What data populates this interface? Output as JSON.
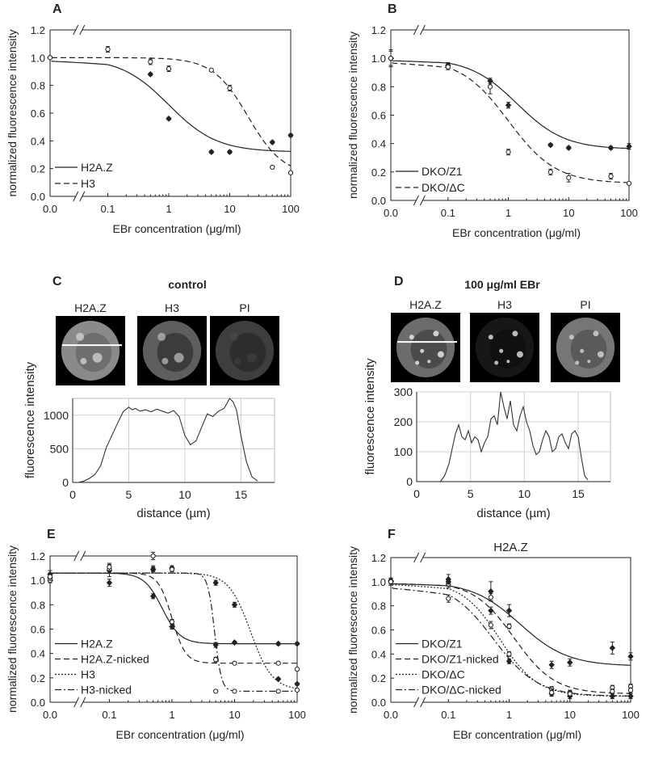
{
  "chart_data": [
    {
      "panel": "A",
      "type": "scatter",
      "xlabel": "EBr concentration (μg/ml)",
      "ylabel": "normalized fluorescence intensity",
      "xscale": "log with break (0.0 shown at origin)",
      "xticks": [
        "0.0",
        "0.1",
        "1",
        "10",
        "100"
      ],
      "yticks": [
        "0.0",
        "0.2",
        "0.4",
        "0.6",
        "0.8",
        "1.0",
        "1.2"
      ],
      "ylim": [
        0,
        1.2
      ],
      "legend_position": "bottom-left",
      "series": [
        {
          "name": "H2A.Z",
          "line": "solid",
          "marker": "filled",
          "x": [
            0,
            0.5,
            1,
            5,
            10,
            50,
            100
          ],
          "y": [
            1.0,
            0.88,
            0.56,
            0.32,
            0.32,
            0.39,
            0.44
          ],
          "err": [
            0.01,
            0.01,
            0.01,
            0.01,
            0.01,
            0.01,
            0.01
          ],
          "fit": {
            "bottom": 0.32,
            "top": 1.0,
            "ec50": 1.0,
            "hill": 1.1
          }
        },
        {
          "name": "H3",
          "line": "dashed",
          "marker": "open",
          "x": [
            0,
            0.1,
            0.5,
            1,
            5,
            10,
            50,
            100
          ],
          "y": [
            1.0,
            1.06,
            0.97,
            0.92,
            0.91,
            0.78,
            0.21,
            0.17
          ],
          "err": [
            0.01,
            0.02,
            0.02,
            0.02,
            0.01,
            0.02,
            0.01,
            0.01
          ],
          "fit": {
            "bottom": 0.15,
            "top": 1.0,
            "ec50": 20,
            "hill": 1.5
          }
        }
      ]
    },
    {
      "panel": "B",
      "type": "scatter",
      "xlabel": "EBr concentration (μg/ml)",
      "ylabel": "normalized fluorescence intensity",
      "xticks": [
        "0.0",
        "0.1",
        "1",
        "10",
        "100"
      ],
      "yticks": [
        "0.0",
        "0.2",
        "0.4",
        "0.6",
        "0.8",
        "1.0",
        "1.2"
      ],
      "ylim": [
        0,
        1.2
      ],
      "legend_position": "bottom-left",
      "series": [
        {
          "name": "DKO/Z1",
          "line": "solid",
          "marker": "filled",
          "x": [
            0,
            0.1,
            0.5,
            1,
            5,
            10,
            50,
            100
          ],
          "y": [
            1.0,
            0.95,
            0.84,
            0.67,
            0.39,
            0.37,
            0.37,
            0.38
          ],
          "err": [
            0.06,
            0.02,
            0.02,
            0.02,
            0.01,
            0.01,
            0.01,
            0.02
          ],
          "fit": {
            "bottom": 0.36,
            "top": 1.0,
            "ec50": 1.4,
            "hill": 1.1
          }
        },
        {
          "name": "DKO/ΔC",
          "line": "dashed",
          "marker": "open",
          "x": [
            0,
            0.1,
            0.5,
            1,
            5,
            10,
            50,
            100
          ],
          "y": [
            1.0,
            0.94,
            0.8,
            0.34,
            0.2,
            0.16,
            0.17,
            0.12
          ],
          "err": [
            0.05,
            0.02,
            0.05,
            0.02,
            0.02,
            0.03,
            0.02,
            0.01
          ],
          "fit": {
            "bottom": 0.12,
            "top": 1.0,
            "ec50": 1.0,
            "hill": 1.1
          }
        }
      ]
    },
    {
      "panel": "C",
      "type": "line",
      "title": "control",
      "image_labels": [
        "H2A.Z",
        "H3",
        "PI"
      ],
      "xlabel": "distance (µm)",
      "ylabel": "fluorescence intensity",
      "xticks": [
        "0",
        "5",
        "10",
        "15"
      ],
      "yticks": [
        "0",
        "500",
        "1000"
      ],
      "xlim": [
        0,
        18
      ],
      "ylim": [
        0,
        1250
      ],
      "x": [
        0.5,
        1.0,
        1.5,
        2.0,
        2.5,
        3.0,
        3.5,
        4.0,
        4.5,
        5.0,
        5.3,
        5.6,
        6.0,
        6.5,
        7.0,
        7.5,
        8.0,
        8.5,
        9.0,
        9.5,
        10.0,
        10.5,
        11.0,
        11.5,
        12.0,
        12.5,
        13.0,
        13.5,
        14.0,
        14.3,
        14.6,
        15.0,
        15.5,
        16.0,
        16.5
      ],
      "y": [
        0,
        20,
        60,
        120,
        250,
        520,
        700,
        880,
        1050,
        1120,
        1080,
        1100,
        1060,
        1080,
        1050,
        1090,
        1060,
        1030,
        1070,
        980,
        700,
        560,
        620,
        820,
        1020,
        980,
        1060,
        1100,
        1250,
        1200,
        1080,
        700,
        300,
        80,
        20
      ]
    },
    {
      "panel": "D",
      "type": "line",
      "title": "100 μg/ml EBr",
      "image_labels": [
        "H2A.Z",
        "H3",
        "PI"
      ],
      "xlabel": "distance (µm)",
      "ylabel": "fluorescence intensity",
      "xticks": [
        "0",
        "5",
        "10",
        "15"
      ],
      "yticks": [
        "0",
        "100",
        "200",
        "300"
      ],
      "xlim": [
        0,
        18
      ],
      "ylim": [
        0,
        300
      ],
      "x": [
        2.2,
        2.6,
        3.0,
        3.3,
        3.6,
        3.9,
        4.2,
        4.5,
        4.8,
        5.1,
        5.4,
        5.7,
        6.0,
        6.3,
        6.6,
        6.9,
        7.2,
        7.5,
        7.8,
        8.1,
        8.4,
        8.7,
        9.0,
        9.3,
        9.6,
        9.9,
        10.2,
        10.5,
        10.8,
        11.1,
        11.4,
        11.7,
        12.0,
        12.3,
        12.6,
        12.9,
        13.2,
        13.5,
        13.8,
        14.1,
        14.4,
        14.7,
        15.0,
        15.3,
        15.6,
        15.9
      ],
      "y": [
        0,
        20,
        60,
        110,
        160,
        190,
        150,
        140,
        170,
        130,
        150,
        140,
        100,
        130,
        150,
        210,
        220,
        190,
        300,
        250,
        210,
        270,
        190,
        170,
        220,
        250,
        200,
        170,
        120,
        90,
        100,
        140,
        170,
        150,
        100,
        110,
        150,
        160,
        130,
        110,
        160,
        170,
        150,
        80,
        20,
        5
      ]
    },
    {
      "panel": "E",
      "type": "scatter",
      "xlabel": "EBr concentration (μg/ml)",
      "ylabel": "normalized fluorescence intensity",
      "xticks": [
        "0.0",
        "0.1",
        "1",
        "10",
        "100"
      ],
      "yticks": [
        "0.0",
        "0.2",
        "0.4",
        "0.6",
        "0.8",
        "1.0",
        "1.2"
      ],
      "ylim": [
        0,
        1.2
      ],
      "legend_position": "bottom-left",
      "series": [
        {
          "name": "H2A.Z",
          "line": "solid",
          "marker": "filled",
          "x": [
            0,
            0.1,
            0.5,
            1,
            5,
            10,
            50,
            100
          ],
          "y": [
            1.02,
            1.08,
            0.87,
            0.62,
            0.47,
            0.49,
            0.48,
            0.48
          ],
          "err": [
            0.03,
            0.05,
            0.02,
            0.02,
            0.02,
            0.01,
            0.01,
            0.01
          ],
          "fit": {
            "bottom": 0.48,
            "top": 1.06,
            "ec50": 0.7,
            "hill": 3.0
          }
        },
        {
          "name": "H2A.Z-nicked",
          "line": "dashed",
          "marker": "open",
          "x": [
            0,
            0.1,
            0.5,
            1,
            5,
            10,
            50,
            100
          ],
          "y": [
            1.0,
            1.09,
            1.09,
            0.66,
            0.35,
            0.32,
            0.32,
            0.27
          ],
          "err": [
            0.02,
            0.03,
            0.03,
            0.02,
            0.02,
            0.01,
            0.01,
            0.01
          ],
          "fit": {
            "bottom": 0.32,
            "top": 1.06,
            "ec50": 1.0,
            "hill": 4.0
          }
        },
        {
          "name": "H3",
          "line": "dotted",
          "marker": "filled",
          "x": [
            0,
            0.1,
            0.5,
            1,
            5,
            10,
            50,
            100
          ],
          "y": [
            1.05,
            0.98,
            1.09,
            1.1,
            0.98,
            0.8,
            0.19,
            0.15
          ],
          "err": [
            0.03,
            0.03,
            0.02,
            0.02,
            0.02,
            0.02,
            0.01,
            0.01
          ],
          "fit": {
            "bottom": 0.1,
            "top": 1.06,
            "ec50": 18,
            "hill": 2.5
          }
        },
        {
          "name": "H3-nicked",
          "line": "dash-dot",
          "marker": "open",
          "x": [
            0,
            0.1,
            0.5,
            1,
            5,
            10,
            50,
            100
          ],
          "y": [
            1.03,
            1.11,
            1.2,
            1.09,
            0.09,
            0.09,
            0.09,
            0.1
          ],
          "err": [
            0.03,
            0.03,
            0.03,
            0.02,
            0.01,
            0.01,
            0.01,
            0.01
          ],
          "fit": {
            "bottom": 0.09,
            "top": 1.06,
            "ec50": 4.8,
            "hill": 8.0
          }
        }
      ]
    },
    {
      "panel": "F",
      "type": "scatter",
      "title": "H2A.Z",
      "xlabel": "EBr concentration (μg/ml)",
      "ylabel": "normalized fluorescence intensity",
      "xticks": [
        "0.0",
        "0.1",
        "1",
        "10",
        "100"
      ],
      "yticks": [
        "0.0",
        "0.2",
        "0.4",
        "0.6",
        "0.8",
        "1.0",
        "1.2"
      ],
      "ylim": [
        0,
        1.2
      ],
      "legend_position": "bottom-left",
      "series": [
        {
          "name": "DKO/Z1",
          "line": "solid",
          "marker": "filled",
          "x": [
            0,
            0.1,
            0.5,
            1,
            5,
            10,
            50,
            100
          ],
          "y": [
            1.0,
            1.02,
            0.92,
            0.76,
            0.31,
            0.33,
            0.45,
            0.38
          ],
          "err": [
            0.03,
            0.04,
            0.08,
            0.05,
            0.03,
            0.03,
            0.05,
            0.03
          ],
          "fit": {
            "bottom": 0.3,
            "top": 1.0,
            "ec50": 1.5,
            "hill": 1.1
          }
        },
        {
          "name": "DKO/Z1-nicked",
          "line": "dashed",
          "marker": "open",
          "x": [
            0,
            0.1,
            0.5,
            1,
            5,
            10,
            50,
            100
          ],
          "y": [
            1.0,
            0.98,
            0.87,
            0.63,
            0.11,
            0.08,
            0.12,
            0.13
          ],
          "err": [
            0.02,
            0.03,
            0.03,
            0.02,
            0.02,
            0.02,
            0.02,
            0.02
          ],
          "fit": {
            "bottom": 0.07,
            "top": 1.0,
            "ec50": 1.2,
            "hill": 1.3
          }
        },
        {
          "name": "DKO/ΔC",
          "line": "dotted",
          "marker": "filled",
          "x": [
            0,
            0.1,
            0.5,
            1,
            5,
            10,
            50,
            100
          ],
          "y": [
            1.01,
            1.0,
            0.76,
            0.34,
            0.07,
            0.05,
            0.05,
            0.05
          ],
          "err": [
            0.02,
            0.02,
            0.03,
            0.02,
            0.02,
            0.02,
            0.02,
            0.02
          ],
          "fit": {
            "bottom": 0.05,
            "top": 1.0,
            "ec50": 0.7,
            "hill": 1.4
          }
        },
        {
          "name": "DKO/ΔC-nicked",
          "line": "dash-dot",
          "marker": "open",
          "x": [
            0,
            0.1,
            0.5,
            1,
            5,
            10,
            50,
            100
          ],
          "y": [
            1.0,
            0.86,
            0.64,
            0.4,
            0.08,
            0.07,
            0.09,
            0.1
          ],
          "err": [
            0.02,
            0.03,
            0.03,
            0.02,
            0.02,
            0.02,
            0.02,
            0.02
          ],
          "fit": {
            "bottom": 0.05,
            "top": 1.0,
            "ec50": 0.55,
            "hill": 1.2
          }
        }
      ]
    }
  ]
}
